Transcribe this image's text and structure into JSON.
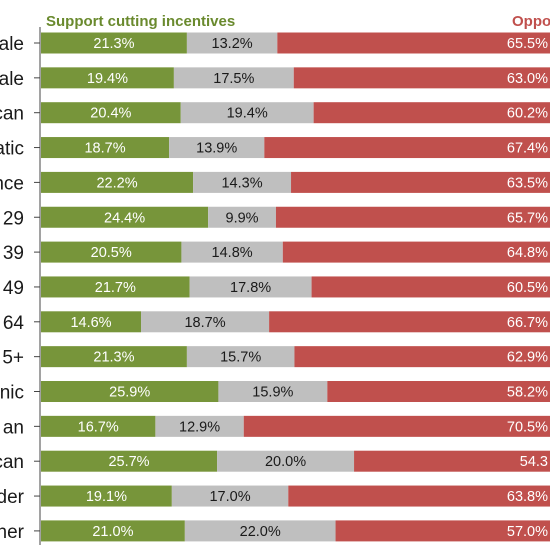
{
  "chart_data": {
    "type": "bar",
    "stacked": true,
    "orientation": "horizontal",
    "categories": [
      "ale",
      "ale",
      "can",
      "atic",
      "nce",
      "29",
      "39",
      "49",
      "64",
      "5+",
      "nic",
      "an",
      "can",
      "der",
      "her"
    ],
    "series": [
      {
        "name": "Support cutting incentives",
        "color": "#77953a",
        "values": [
          21.3,
          19.4,
          20.4,
          18.7,
          22.2,
          24.4,
          20.5,
          21.7,
          14.6,
          21.3,
          25.9,
          16.7,
          25.7,
          19.1,
          21.0
        ],
        "labels": [
          "21.3%",
          "19.4%",
          "20.4%",
          "18.7%",
          "22.2%",
          "24.4%",
          "20.5%",
          "21.7%",
          "14.6%",
          "21.3%",
          "25.9%",
          "16.7%",
          "25.7%",
          "19.1%",
          "21.0%"
        ]
      },
      {
        "name": "",
        "color": "#bfbfbf",
        "values": [
          13.2,
          17.5,
          19.4,
          13.9,
          14.3,
          9.9,
          14.8,
          17.8,
          18.7,
          15.7,
          15.9,
          12.9,
          20.0,
          17.0,
          22.0
        ],
        "labels": [
          "13.2%",
          "17.5%",
          "19.4%",
          "13.9%",
          "14.3%",
          "9.9%",
          "14.8%",
          "17.8%",
          "18.7%",
          "15.7%",
          "15.9%",
          "12.9%",
          "20.0%",
          "17.0%",
          "22.0%"
        ]
      },
      {
        "name": "Oppo",
        "color": "#c0504d",
        "values": [
          65.5,
          63.0,
          60.2,
          67.4,
          63.5,
          65.7,
          64.8,
          60.5,
          66.7,
          62.9,
          58.2,
          70.5,
          54.3,
          63.8,
          57.0
        ],
        "labels": [
          "65.5%",
          "63.0%",
          "60.2%",
          "67.4%",
          "63.5%",
          "65.7%",
          "64.8%",
          "60.5%",
          "66.7%",
          "62.9%",
          "58.2%",
          "70.5%",
          "54.3",
          "63.8%",
          "57.0%"
        ]
      }
    ],
    "label_colors": [
      "#ffffff",
      "#1a1a1a",
      "#ffffff"
    ],
    "legend": {
      "position": "top",
      "entries": [
        {
          "text": "Support cutting incentives",
          "color": "#6a8a2e"
        },
        {
          "text": "Oppo",
          "color": "#c0504d"
        }
      ]
    }
  }
}
